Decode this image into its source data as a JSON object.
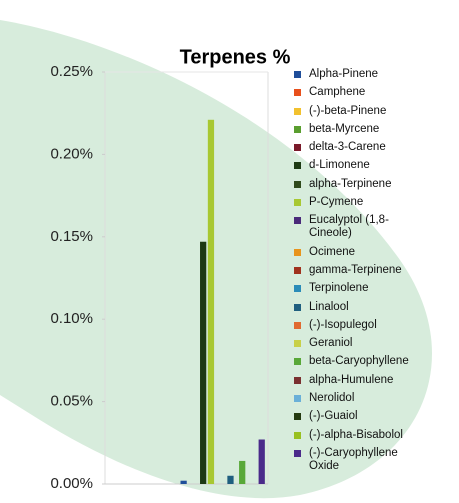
{
  "chart_data": {
    "type": "bar",
    "title": "Terpenes %",
    "ylim": [
      0,
      0.25
    ],
    "yticks": [
      {
        "value": 0,
        "label": "0.00%"
      },
      {
        "value": 0.05,
        "label": "0.05%"
      },
      {
        "value": 0.1,
        "label": "0.10%"
      },
      {
        "value": 0.15,
        "label": "0.15%"
      },
      {
        "value": 0.2,
        "label": "0.20%"
      },
      {
        "value": 0.25,
        "label": "0.25%"
      }
    ],
    "grid": false,
    "legend": "right",
    "series": [
      {
        "name": "Alpha-Pinene",
        "color": "#1f4e9a",
        "values": [
          0.002
        ]
      },
      {
        "name": "Camphene",
        "color": "#e8501c",
        "values": [
          0
        ]
      },
      {
        "name": "(-)-beta-Pinene",
        "color": "#f2c12e",
        "values": [
          0
        ]
      },
      {
        "name": "beta-Myrcene",
        "color": "#5a9e2f",
        "values": [
          0
        ]
      },
      {
        "name": "delta-3-Carene",
        "color": "#7a1a2a",
        "values": [
          0
        ]
      },
      {
        "name": "d-Limonene",
        "color": "#1d3a14",
        "values": [
          0.147
        ]
      },
      {
        "name": "alpha-Terpinene",
        "color": "#2f4a1c",
        "values": [
          0
        ]
      },
      {
        "name": "P-Cymene",
        "color": "#a8c832",
        "values": [
          0.221
        ]
      },
      {
        "name": "Eucalyptol (1,8-Cineole)",
        "color": "#4a2a7a",
        "values": [
          0
        ]
      },
      {
        "name": "Ocimene",
        "color": "#e8941c",
        "values": [
          0
        ]
      },
      {
        "name": "gamma-Terpinene",
        "color": "#a0321e",
        "values": [
          0
        ]
      },
      {
        "name": "Terpinolene",
        "color": "#2a8cb8",
        "values": [
          0
        ]
      },
      {
        "name": "Linalool",
        "color": "#1f5f7f",
        "values": [
          0.005
        ]
      },
      {
        "name": "(-)-Isopulegol",
        "color": "#e06a30",
        "values": [
          0
        ]
      },
      {
        "name": "Geraniol",
        "color": "#c8d048",
        "values": [
          0
        ]
      },
      {
        "name": "beta-Caryophyllene",
        "color": "#58a838",
        "values": [
          0.014
        ]
      },
      {
        "name": "alpha-Humulene",
        "color": "#7a3030",
        "values": [
          0
        ]
      },
      {
        "name": "Nerolidol",
        "color": "#6ab0d8",
        "values": [
          0
        ]
      },
      {
        "name": "(-)-Guaiol",
        "color": "#243a10",
        "values": [
          0
        ]
      },
      {
        "name": "(-)-alpha-Bisabolol",
        "color": "#98c020",
        "values": [
          0
        ]
      },
      {
        "name": "(-)-Caryophyllene Oxide",
        "color": "#4a2a8a",
        "values": [
          0.027
        ]
      }
    ]
  }
}
